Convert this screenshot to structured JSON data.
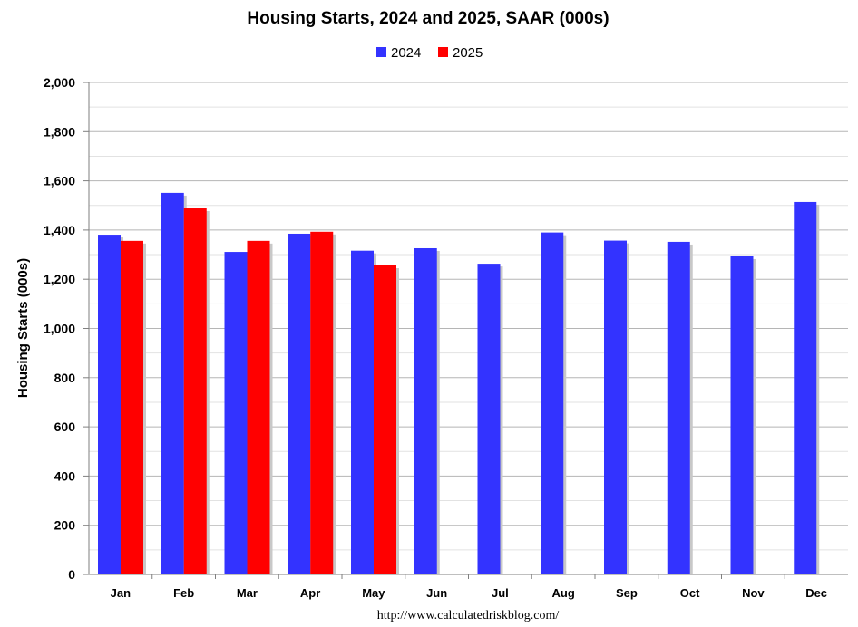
{
  "chart_data": {
    "type": "bar",
    "title": "Housing Starts,  2024 and 2025, SAAR (000s)",
    "ylabel": "Housing Starts (000s)",
    "xlabel": "",
    "source": "http://www.calculatedriskblog.com/",
    "categories": [
      "Jan",
      "Feb",
      "Mar",
      "Apr",
      "May",
      "Jun",
      "Jul",
      "Aug",
      "Sep",
      "Oct",
      "Nov",
      "Dec"
    ],
    "series": [
      {
        "name": "2024",
        "color": "#3333ff",
        "values": [
          1381,
          1551,
          1311,
          1385,
          1316,
          1326,
          1263,
          1390,
          1357,
          1352,
          1293,
          1514
        ]
      },
      {
        "name": "2025",
        "color": "#ff0000",
        "values": [
          1356,
          1488,
          1356,
          1393,
          1256,
          null,
          null,
          null,
          null,
          null,
          null,
          null
        ]
      }
    ],
    "ylim": [
      0,
      2000
    ],
    "yticks": [
      0,
      200,
      400,
      600,
      800,
      1000,
      1200,
      1400,
      1600,
      1800,
      2000
    ],
    "ytick_labels": [
      "0",
      "200",
      "400",
      "600",
      "800",
      "1,000",
      "1,200",
      "1,400",
      "1,600",
      "1,800",
      "2,000"
    ],
    "grid": true,
    "legend_position": "top-center"
  }
}
